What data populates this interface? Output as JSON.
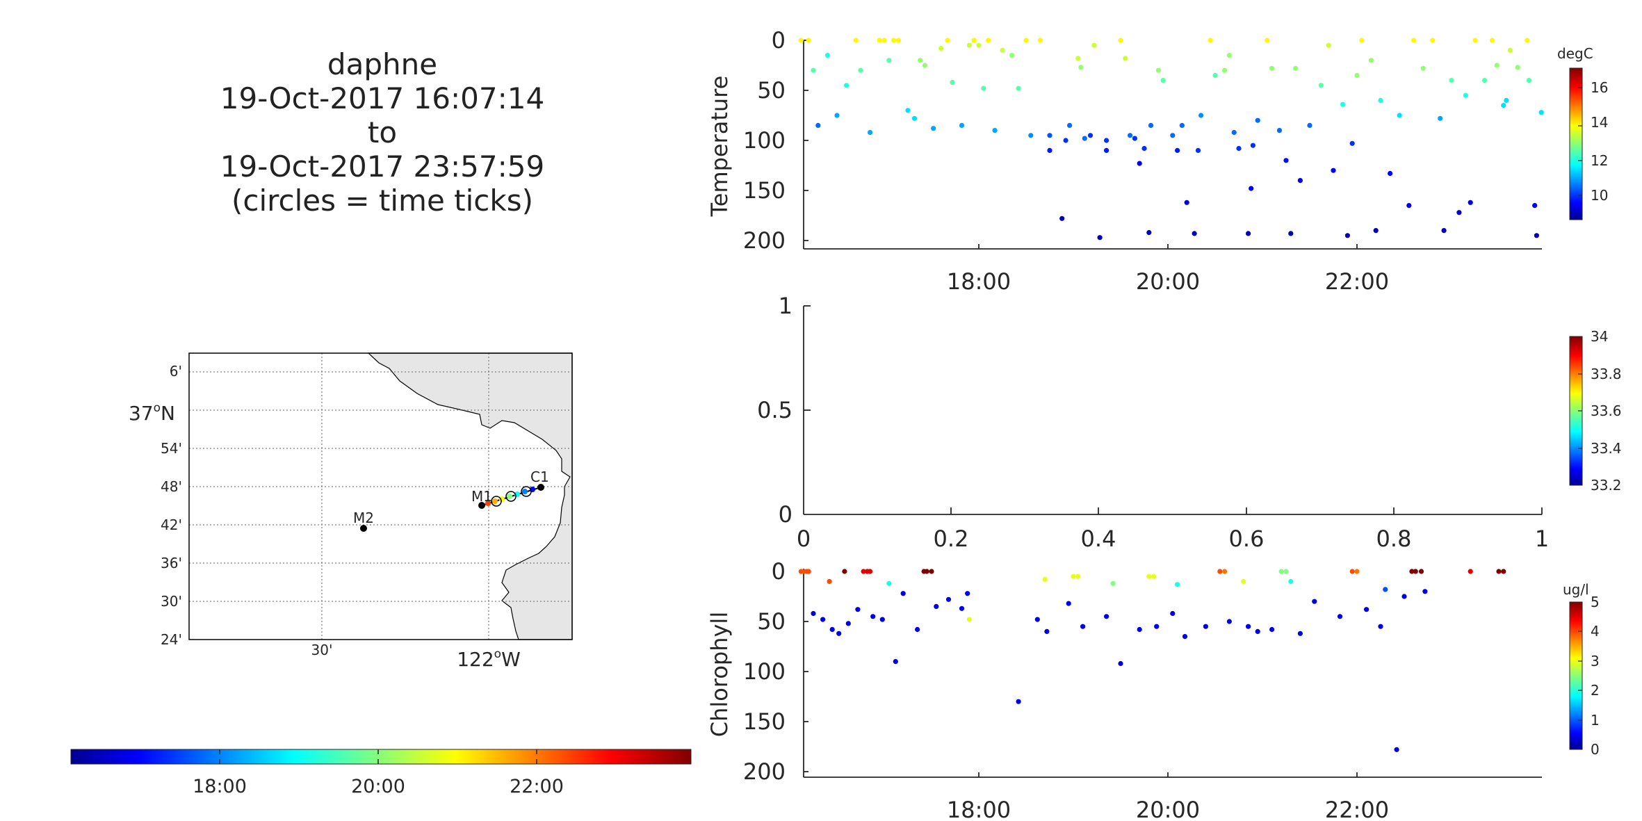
{
  "header": {
    "vehicle": "daphne",
    "start": "19-Oct-2017 16:07:14",
    "to": "to",
    "end": "19-Oct-2017 23:57:59",
    "note": "(circles = time ticks)"
  },
  "colors": {
    "axis": "#262626",
    "land": "#e6e6e6"
  },
  "map": {
    "lat_ticks": [
      "6'",
      "37",
      "54'",
      "48'",
      "42'",
      "36'",
      "30'",
      "24'"
    ],
    "lat_degree": "o",
    "lat_hemi": "N",
    "lon_ticks": [
      "30'",
      "122"
    ],
    "lon_degree": "o",
    "lon_hemi": "W",
    "stations": {
      "m1": "M1",
      "m2": "M2",
      "c1": "C1"
    }
  },
  "time_colorbar": {
    "colormap": "jet",
    "range": [
      "16:07:14",
      "23:57:59"
    ],
    "ticks": [
      "18:00",
      "20:00",
      "22:00"
    ]
  },
  "chart_data": [
    {
      "type": "scatter",
      "title": "",
      "ylabel": "Temperature",
      "xlabel": "",
      "x_range_hours": [
        16.12,
        23.97
      ],
      "ylim": [
        0,
        200
      ],
      "y_reversed": true,
      "xticks": [
        "18:00",
        "20:00",
        "22:00"
      ],
      "yticks": [
        "0",
        "50",
        "100",
        "150",
        "200"
      ],
      "colorbar": {
        "label": "degC",
        "range": [
          8.5,
          17.2
        ],
        "ticks": [
          "10",
          "12",
          "14",
          "16"
        ],
        "colormap": "jet"
      },
      "points": [
        [
          16.12,
          0,
          14
        ],
        [
          16.2,
          0,
          14
        ],
        [
          16.25,
          30,
          12.5
        ],
        [
          16.3,
          85,
          10.5
        ],
        [
          16.4,
          15,
          12
        ],
        [
          16.5,
          75,
          11
        ],
        [
          16.6,
          45,
          12
        ],
        [
          16.7,
          0,
          14
        ],
        [
          16.75,
          30,
          12.5
        ],
        [
          16.85,
          92,
          11
        ],
        [
          16.95,
          0,
          14
        ],
        [
          17.0,
          0,
          14
        ],
        [
          17.05,
          20,
          12.5
        ],
        [
          17.1,
          0,
          14
        ],
        [
          17.15,
          0,
          14
        ],
        [
          17.25,
          70,
          11.5
        ],
        [
          17.32,
          78,
          11.5
        ],
        [
          17.38,
          20,
          13
        ],
        [
          17.43,
          25,
          13
        ],
        [
          17.52,
          88,
          11
        ],
        [
          17.6,
          8,
          13.5
        ],
        [
          17.67,
          0,
          14
        ],
        [
          17.72,
          42,
          12.5
        ],
        [
          17.82,
          85,
          11
        ],
        [
          17.9,
          5,
          13.5
        ],
        [
          17.95,
          0,
          14
        ],
        [
          18.0,
          5,
          13.5
        ],
        [
          18.05,
          48,
          12.5
        ],
        [
          18.1,
          0,
          14
        ],
        [
          18.17,
          90,
          11
        ],
        [
          18.25,
          10,
          13.5
        ],
        [
          18.35,
          15,
          13
        ],
        [
          18.42,
          48,
          12.5
        ],
        [
          18.5,
          0,
          14
        ],
        [
          18.55,
          95,
          10.8
        ],
        [
          18.65,
          0,
          14
        ],
        [
          18.75,
          95,
          10.3
        ],
        [
          18.75,
          110,
          9.8
        ],
        [
          18.88,
          178,
          9
        ],
        [
          18.92,
          100,
          10
        ],
        [
          18.96,
          85,
          10.5
        ],
        [
          19.05,
          18,
          13.5
        ],
        [
          19.08,
          27,
          13
        ],
        [
          19.12,
          98,
          10.5
        ],
        [
          19.18,
          95,
          10
        ],
        [
          19.22,
          5,
          13.5
        ],
        [
          19.28,
          197,
          9
        ],
        [
          19.35,
          100,
          10
        ],
        [
          19.35,
          110,
          9.8
        ],
        [
          19.5,
          0,
          14
        ],
        [
          19.55,
          18,
          13.5
        ],
        [
          19.6,
          95,
          10.5
        ],
        [
          19.65,
          98,
          10
        ],
        [
          19.7,
          123,
          9.5
        ],
        [
          19.75,
          108,
          10
        ],
        [
          19.8,
          192,
          9
        ],
        [
          19.82,
          85,
          10.5
        ],
        [
          19.9,
          30,
          13
        ],
        [
          19.95,
          40,
          12.5
        ],
        [
          20.05,
          95,
          10.5
        ],
        [
          20.1,
          110,
          9.8
        ],
        [
          20.15,
          85,
          10.5
        ],
        [
          20.2,
          162,
          9.3
        ],
        [
          20.28,
          193,
          9
        ],
        [
          20.32,
          110,
          10
        ],
        [
          20.35,
          75,
          10.8
        ],
        [
          20.45,
          0,
          14
        ],
        [
          20.5,
          35,
          12.5
        ],
        [
          20.6,
          30,
          13
        ],
        [
          20.65,
          15,
          13
        ],
        [
          20.7,
          92,
          10.5
        ],
        [
          20.75,
          108,
          10
        ],
        [
          20.85,
          193,
          9
        ],
        [
          20.88,
          148,
          9.5
        ],
        [
          20.9,
          105,
          10
        ],
        [
          20.95,
          80,
          10.5
        ],
        [
          21.05,
          0,
          14
        ],
        [
          21.1,
          28,
          13
        ],
        [
          21.18,
          90,
          10.5
        ],
        [
          21.25,
          120,
          9.7
        ],
        [
          21.3,
          193,
          9
        ],
        [
          21.35,
          28,
          13
        ],
        [
          21.4,
          140,
          9.5
        ],
        [
          21.5,
          85,
          10.5
        ],
        [
          21.62,
          45,
          12.5
        ],
        [
          21.7,
          5,
          13.5
        ],
        [
          21.75,
          130,
          9.6
        ],
        [
          21.85,
          64,
          12
        ],
        [
          21.9,
          195,
          9
        ],
        [
          21.95,
          103,
          10
        ],
        [
          22.0,
          35,
          13
        ],
        [
          22.05,
          0,
          14
        ],
        [
          22.15,
          20,
          13
        ],
        [
          22.2,
          190,
          9
        ],
        [
          22.25,
          60,
          12
        ],
        [
          22.35,
          133,
          9.5
        ],
        [
          22.45,
          75,
          11.5
        ],
        [
          22.55,
          165,
          9.4
        ],
        [
          22.6,
          0,
          14
        ],
        [
          22.7,
          28,
          13
        ],
        [
          22.8,
          0,
          14
        ],
        [
          22.88,
          78,
          11
        ],
        [
          22.92,
          190,
          9
        ],
        [
          23.0,
          40,
          12.5
        ],
        [
          23.08,
          172,
          9.2
        ],
        [
          23.15,
          55,
          12
        ],
        [
          23.2,
          162,
          9.3
        ],
        [
          23.25,
          0,
          14
        ],
        [
          23.35,
          40,
          12.5
        ],
        [
          23.43,
          0,
          14
        ],
        [
          23.48,
          25,
          13
        ],
        [
          23.55,
          65,
          11.5
        ],
        [
          23.58,
          60,
          11.5
        ],
        [
          23.62,
          10,
          13.5
        ],
        [
          23.7,
          27,
          13
        ],
        [
          23.8,
          0,
          14
        ],
        [
          23.82,
          40,
          12.5
        ],
        [
          23.88,
          165,
          9.3
        ],
        [
          23.9,
          195,
          9
        ],
        [
          23.95,
          72,
          11.5
        ]
      ]
    },
    {
      "type": "scatter",
      "title": "",
      "ylabel": "",
      "xlabel": "",
      "xlim": [
        0,
        1
      ],
      "ylim": [
        0,
        1
      ],
      "xticks": [
        "0",
        "0.2",
        "0.4",
        "0.6",
        "0.8",
        "1"
      ],
      "yticks": [
        "0",
        "0.5",
        "1"
      ],
      "colorbar": {
        "label": "",
        "range": [
          33.2,
          34.0
        ],
        "ticks": [
          "33.2",
          "33.4",
          "33.6",
          "33.8",
          "34"
        ],
        "colormap": "jet"
      },
      "points": []
    },
    {
      "type": "scatter",
      "title": "",
      "ylabel": "Chlorophyll",
      "xlabel": "",
      "x_range_hours": [
        16.12,
        23.97
      ],
      "ylim": [
        0,
        200
      ],
      "y_reversed": true,
      "xticks": [
        "18:00",
        "20:00",
        "22:00"
      ],
      "yticks": [
        "0",
        "50",
        "100",
        "150",
        "200"
      ],
      "colorbar": {
        "label": "ug/l",
        "range": [
          0,
          5
        ],
        "ticks": [
          "0",
          "1",
          "2",
          "3",
          "4",
          "5"
        ],
        "colormap": "jet"
      },
      "points": [
        [
          16.12,
          0,
          4
        ],
        [
          16.15,
          0,
          4
        ],
        [
          16.18,
          0,
          4
        ],
        [
          16.2,
          0,
          4
        ],
        [
          16.25,
          42,
          0.5
        ],
        [
          16.35,
          48,
          0.5
        ],
        [
          16.42,
          10,
          4
        ],
        [
          16.45,
          58,
          0.5
        ],
        [
          16.52,
          62,
          0.5
        ],
        [
          16.58,
          0,
          5
        ],
        [
          16.62,
          52,
          0.5
        ],
        [
          16.72,
          38,
          0.5
        ],
        [
          16.78,
          0,
          4.5
        ],
        [
          16.82,
          0,
          4.5
        ],
        [
          16.85,
          0,
          4.5
        ],
        [
          16.88,
          45,
          0.5
        ],
        [
          16.98,
          48,
          0.5
        ],
        [
          17.05,
          12,
          2
        ],
        [
          17.12,
          90,
          0.5
        ],
        [
          17.2,
          22,
          0.5
        ],
        [
          17.35,
          58,
          0.5
        ],
        [
          17.42,
          0,
          5
        ],
        [
          17.45,
          0,
          5
        ],
        [
          17.5,
          0,
          5
        ],
        [
          17.55,
          35,
          0.5
        ],
        [
          17.68,
          28,
          0.5
        ],
        [
          17.82,
          37,
          0.5
        ],
        [
          17.88,
          22,
          0.5
        ],
        [
          17.9,
          48,
          3
        ],
        [
          18.42,
          130,
          0.5
        ],
        [
          18.62,
          48,
          0.5
        ],
        [
          18.7,
          8,
          3
        ],
        [
          18.72,
          60,
          0.5
        ],
        [
          18.95,
          32,
          0.5
        ],
        [
          19.0,
          5,
          3
        ],
        [
          19.05,
          5,
          3
        ],
        [
          19.1,
          55,
          0.5
        ],
        [
          19.35,
          45,
          0.5
        ],
        [
          19.42,
          12,
          2.5
        ],
        [
          19.5,
          92,
          0.5
        ],
        [
          19.7,
          58,
          0.5
        ],
        [
          19.8,
          5,
          3
        ],
        [
          19.85,
          5,
          3
        ],
        [
          19.88,
          55,
          0.5
        ],
        [
          20.05,
          42,
          0.5
        ],
        [
          20.1,
          13,
          2
        ],
        [
          20.18,
          65,
          0.5
        ],
        [
          20.4,
          55,
          0.5
        ],
        [
          20.55,
          0,
          4
        ],
        [
          20.6,
          0,
          3.8
        ],
        [
          20.65,
          50,
          0.5
        ],
        [
          20.8,
          10,
          3
        ],
        [
          20.85,
          55,
          0.5
        ],
        [
          20.95,
          60,
          0.5
        ],
        [
          21.1,
          58,
          0.5
        ],
        [
          21.2,
          0,
          2.5
        ],
        [
          21.25,
          0,
          2.5
        ],
        [
          21.3,
          10,
          2
        ],
        [
          21.4,
          62,
          0.5
        ],
        [
          21.55,
          30,
          0.5
        ],
        [
          21.82,
          45,
          0.5
        ],
        [
          21.95,
          0,
          4
        ],
        [
          22.0,
          0,
          3.8
        ],
        [
          22.1,
          38,
          0.5
        ],
        [
          22.25,
          55,
          0.5
        ],
        [
          22.3,
          18,
          1
        ],
        [
          22.42,
          178,
          0.5
        ],
        [
          22.5,
          25,
          0.5
        ],
        [
          22.58,
          0,
          5
        ],
        [
          22.62,
          0,
          5
        ],
        [
          22.68,
          0,
          5
        ],
        [
          22.72,
          20,
          0.5
        ],
        [
          23.2,
          0,
          4.5
        ],
        [
          23.5,
          0,
          5
        ],
        [
          23.55,
          0,
          5
        ]
      ]
    }
  ]
}
